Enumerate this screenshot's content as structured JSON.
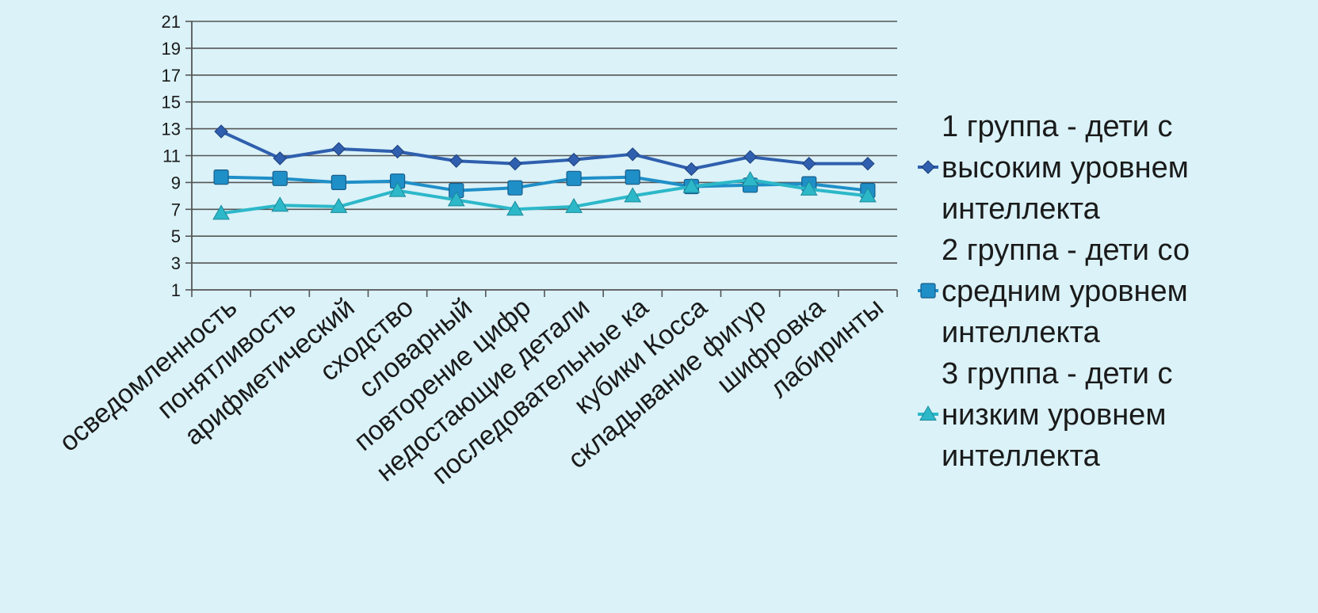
{
  "chart_data": {
    "type": "line",
    "title": "",
    "xlabel": "",
    "ylabel": "",
    "ylim": [
      1,
      21
    ],
    "yticks": [
      1,
      3,
      5,
      7,
      9,
      11,
      13,
      15,
      17,
      19,
      21
    ],
    "grid": true,
    "legend_position": "right",
    "categories": [
      "осведомленность",
      "понятливость",
      "арифметический",
      "сходство",
      "словарный",
      "повторение цифр",
      "недостающие детали",
      "последовательные ка",
      "кубики Косса",
      "складывание фигур",
      "шифровка",
      "лабиринты"
    ],
    "series": [
      {
        "name": "1 группа - дети с высоким уровнем интеллекта",
        "legend_lines": [
          "1 группа - дети с",
          "высоким уровнем",
          "интеллекта"
        ],
        "marker": "diamond",
        "color": "#2f5fae",
        "values": [
          12.8,
          10.8,
          11.5,
          11.3,
          10.6,
          10.4,
          10.7,
          11.1,
          10.0,
          10.9,
          10.4,
          10.4
        ]
      },
      {
        "name": "2 группа - дети со средним уровнем интеллекта",
        "legend_lines": [
          "2 группа - дети со",
          "средним уровнем",
          "интеллекта"
        ],
        "marker": "square",
        "color": "#1f8fc8",
        "values": [
          9.4,
          9.3,
          9.0,
          9.1,
          8.4,
          8.6,
          9.3,
          9.4,
          8.7,
          8.8,
          8.9,
          8.4
        ]
      },
      {
        "name": "3 группа - дети с низким уровнем интеллекта",
        "legend_lines": [
          "3 группа - дети с",
          "низким уровнем",
          "интеллекта"
        ],
        "marker": "triangle",
        "color": "#2cb8c9",
        "values": [
          6.7,
          7.3,
          7.2,
          8.4,
          7.7,
          7.0,
          7.2,
          8.0,
          8.7,
          9.2,
          8.5,
          8.0
        ]
      }
    ]
  }
}
